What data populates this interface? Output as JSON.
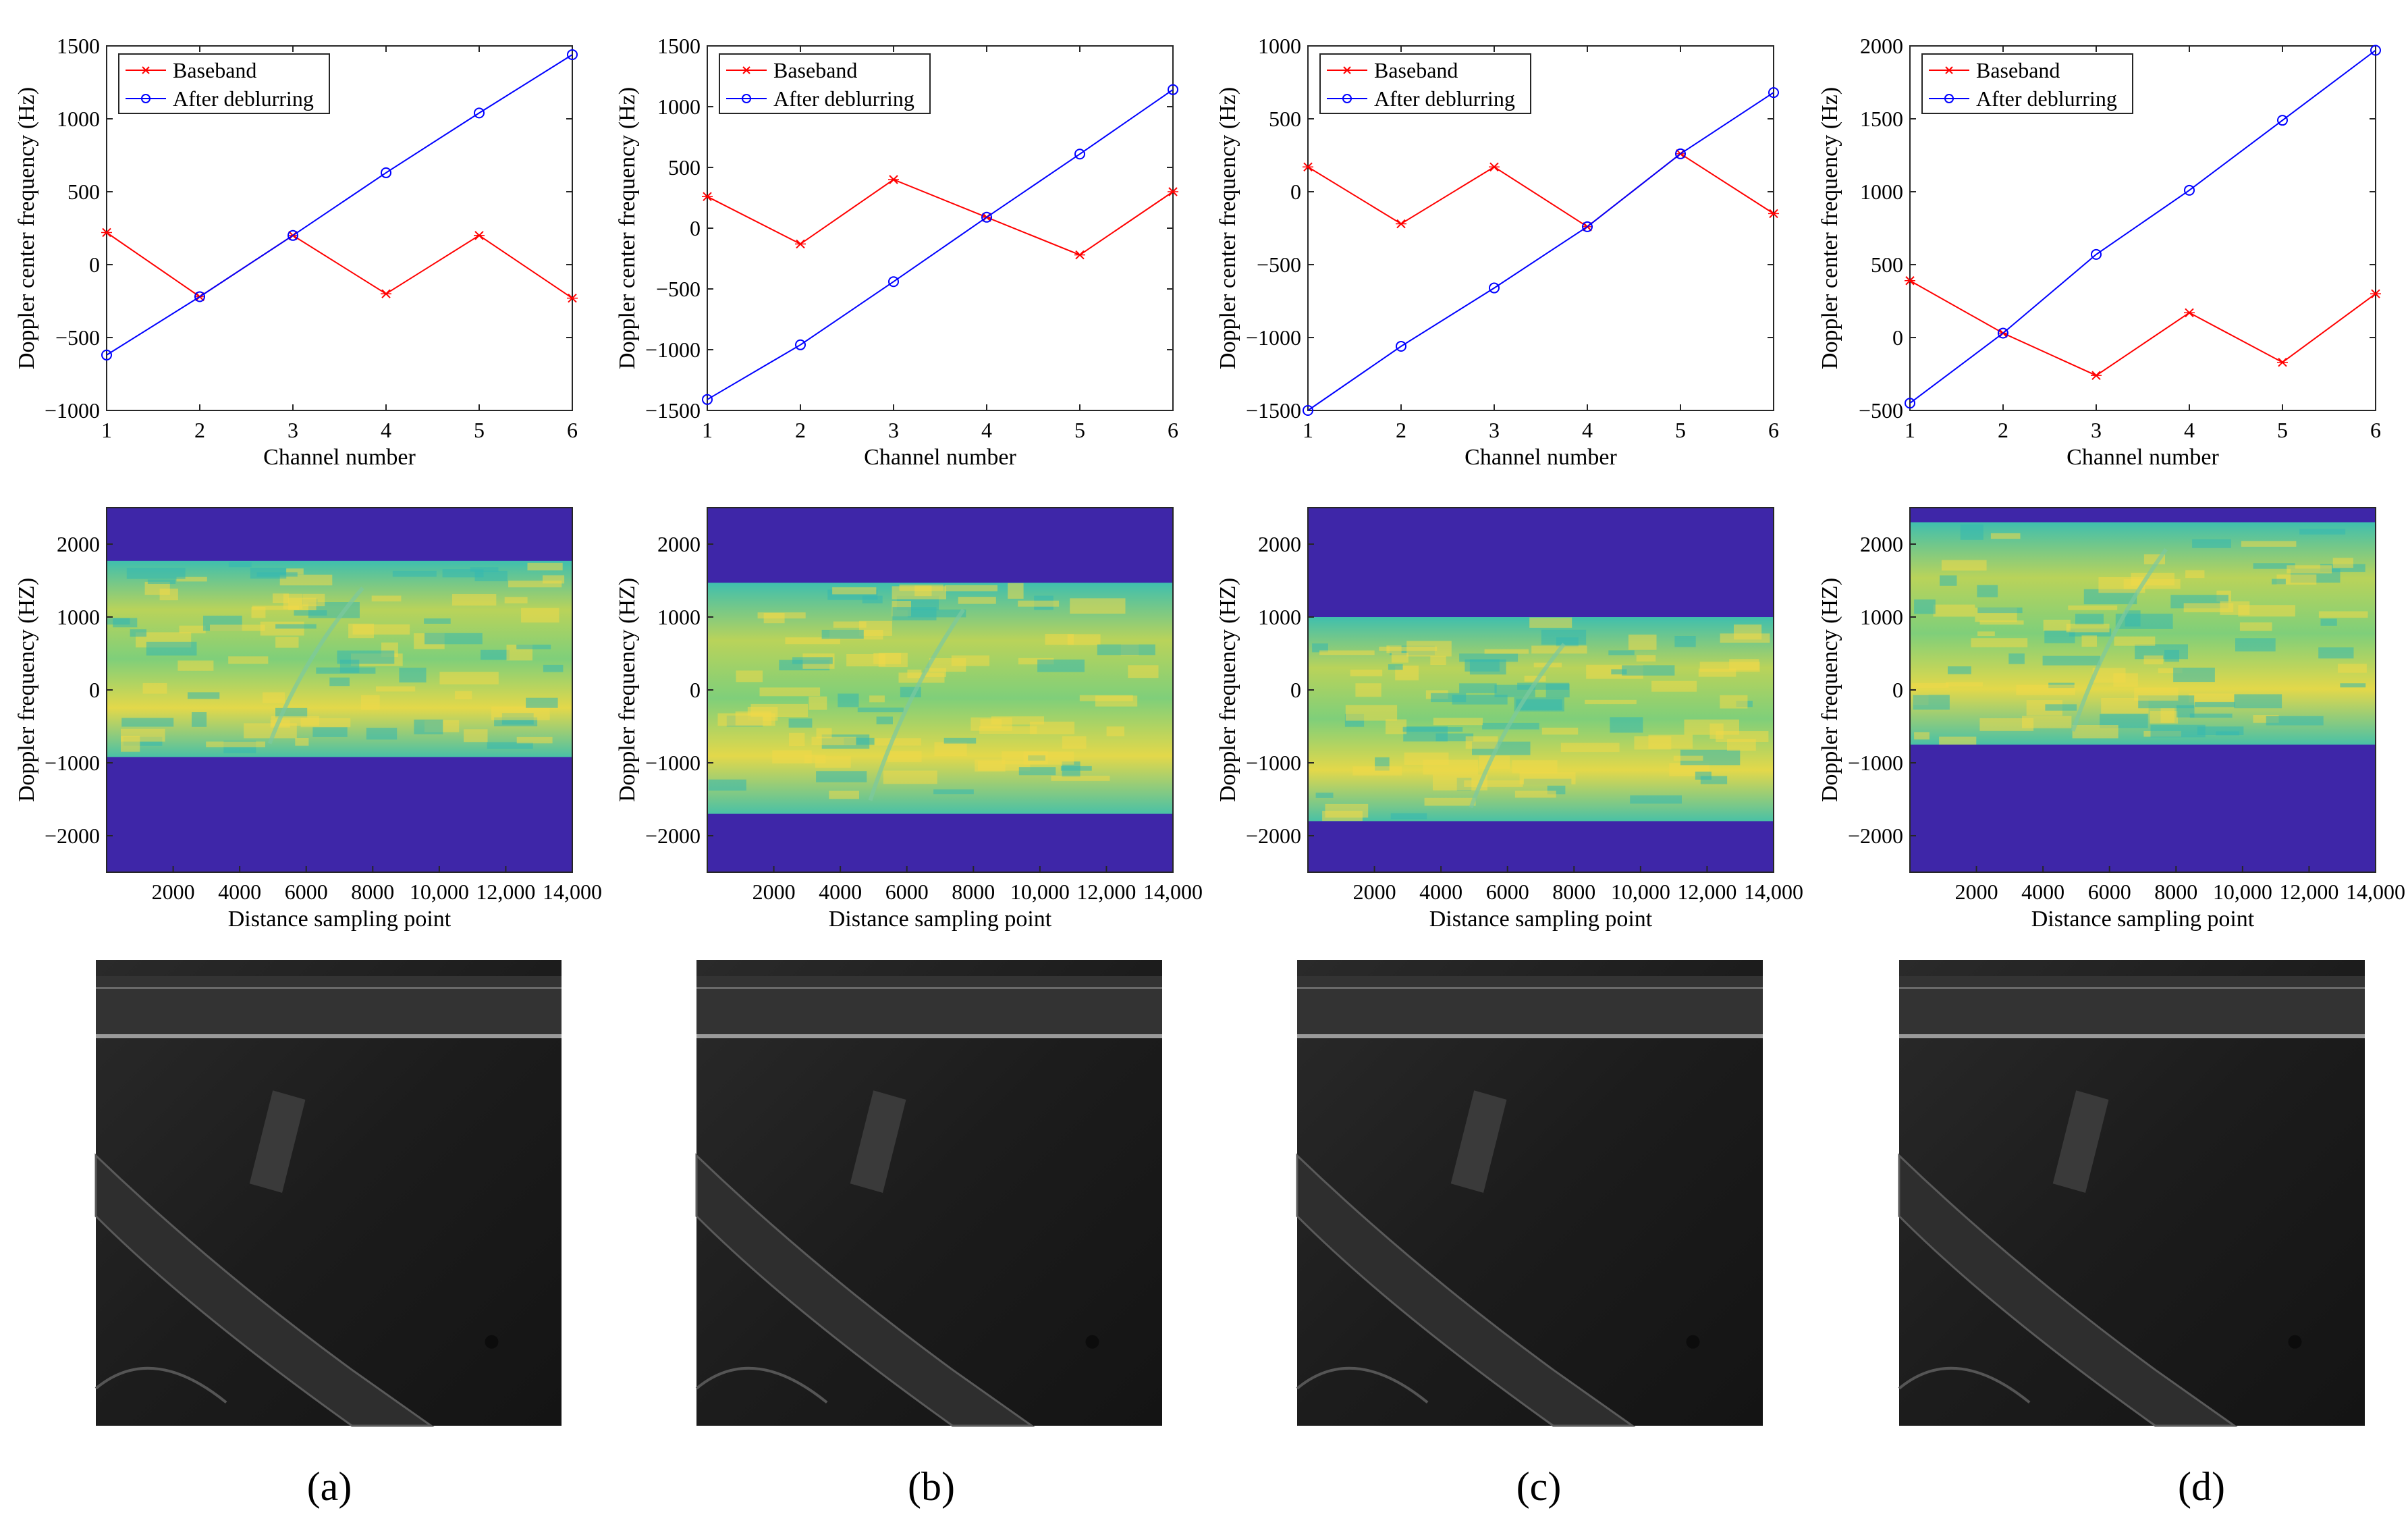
{
  "colors": {
    "baseband": "#ff0000",
    "deblurred": "#0000ff",
    "spectrum_bg": "#3e26a8",
    "spectrum_teal": "#35b8b0",
    "spectrum_yellow": "#f0d848",
    "sar_dark": "#1e1e1e"
  },
  "panel_labels": [
    "(a)",
    "(b)",
    "(c)",
    "(d)"
  ],
  "chart_data": [
    {
      "type": "line",
      "xlabel": "Channel number",
      "ylabel": "Doppler center frequency (Hz)",
      "x": [
        1,
        2,
        3,
        4,
        5,
        6
      ],
      "xticks": [
        "1",
        "2",
        "3",
        "4",
        "5",
        "6"
      ],
      "ylim": [
        -1000,
        1500
      ],
      "yticks": [
        -1000,
        -500,
        0,
        500,
        1000,
        1500
      ],
      "ytick_labels": [
        "−1000",
        "−500",
        "0",
        "500",
        "1000",
        "1500"
      ],
      "legend": "top-left",
      "series": [
        {
          "name": "Baseband",
          "marker": "x",
          "color": "#ff0000",
          "values": [
            220,
            -220,
            200,
            -200,
            200,
            -230
          ]
        },
        {
          "name": "After deblurring",
          "marker": "o",
          "color": "#0000ff",
          "values": [
            -620,
            -220,
            200,
            630,
            1040,
            1440
          ]
        }
      ]
    },
    {
      "type": "line",
      "xlabel": "Channel number",
      "ylabel": "Doppler center frequency (Hz)",
      "x": [
        1,
        2,
        3,
        4,
        5,
        6
      ],
      "xticks": [
        "1",
        "2",
        "3",
        "4",
        "5",
        "6"
      ],
      "ylim": [
        -1500,
        1500
      ],
      "yticks": [
        -1500,
        -1000,
        -500,
        0,
        500,
        1000,
        1500
      ],
      "ytick_labels": [
        "−1500",
        "−1000",
        "−500",
        "0",
        "500",
        "1000",
        "1500"
      ],
      "legend": "top-left",
      "series": [
        {
          "name": "Baseband",
          "marker": "x",
          "color": "#ff0000",
          "values": [
            260,
            -130,
            400,
            90,
            -220,
            300
          ]
        },
        {
          "name": "After deblurring",
          "marker": "o",
          "color": "#0000ff",
          "values": [
            -1410,
            -960,
            -440,
            90,
            610,
            1140
          ]
        }
      ]
    },
    {
      "type": "line",
      "xlabel": "Channel number",
      "ylabel": "Doppler center frequency (Hz)",
      "x": [
        1,
        2,
        3,
        4,
        5,
        6
      ],
      "xticks": [
        "1",
        "2",
        "3",
        "4",
        "5",
        "6"
      ],
      "ylim": [
        -1500,
        1000
      ],
      "yticks": [
        -1500,
        -1000,
        -500,
        0,
        500,
        1000
      ],
      "ytick_labels": [
        "−1500",
        "−1000",
        "−500",
        "0",
        "500",
        "1000"
      ],
      "legend": "top-left",
      "series": [
        {
          "name": "Baseband",
          "marker": "x",
          "color": "#ff0000",
          "values": [
            170,
            -220,
            170,
            -240,
            260,
            -150
          ]
        },
        {
          "name": "After deblurring",
          "marker": "o",
          "color": "#0000ff",
          "values": [
            -1500,
            -1060,
            -660,
            -240,
            260,
            680
          ]
        }
      ]
    },
    {
      "type": "line",
      "xlabel": "Channel number",
      "ylabel": "Doppler center frequency (Hz)",
      "x": [
        1,
        2,
        3,
        4,
        5,
        6
      ],
      "xticks": [
        "1",
        "2",
        "3",
        "4",
        "5",
        "6"
      ],
      "ylim": [
        -500,
        2000
      ],
      "yticks": [
        -500,
        0,
        500,
        1000,
        1500,
        2000
      ],
      "ytick_labels": [
        "−500",
        "0",
        "500",
        "1000",
        "1500",
        "2000"
      ],
      "legend": "top-left",
      "series": [
        {
          "name": "Baseband",
          "marker": "x",
          "color": "#ff0000",
          "values": [
            390,
            30,
            -260,
            170,
            -170,
            300
          ]
        },
        {
          "name": "After deblurring",
          "marker": "o",
          "color": "#0000ff",
          "values": [
            -450,
            30,
            570,
            1010,
            1490,
            1970
          ]
        }
      ]
    },
    {
      "type": "heatmap",
      "xlabel": "Distance sampling point",
      "ylabel": "Doppler frequency (HZ)",
      "xlim": [
        0,
        14000
      ],
      "xticks": [
        2000,
        4000,
        6000,
        8000,
        10000,
        12000,
        14000
      ],
      "xtick_labels": [
        "2000",
        "4000",
        "6000",
        "8000",
        "10,000",
        "12,000",
        "14,000"
      ],
      "ylim": [
        -2500,
        2500
      ],
      "yticks": [
        -2000,
        -1000,
        0,
        1000,
        2000
      ],
      "ytick_labels": [
        "−2000",
        "−1000",
        "0",
        "1000",
        "2000"
      ],
      "band_hz": [
        -920,
        1770
      ]
    },
    {
      "type": "heatmap",
      "xlabel": "Distance sampling point",
      "ylabel": "Doppler frequency (HZ)",
      "xlim": [
        0,
        14000
      ],
      "xticks": [
        2000,
        4000,
        6000,
        8000,
        10000,
        12000,
        14000
      ],
      "xtick_labels": [
        "2000",
        "4000",
        "6000",
        "8000",
        "10,000",
        "12,000",
        "14,000"
      ],
      "ylim": [
        -2500,
        2500
      ],
      "yticks": [
        -2000,
        -1000,
        0,
        1000,
        2000
      ],
      "ytick_labels": [
        "−2000",
        "−1000",
        "0",
        "1000",
        "2000"
      ],
      "band_hz": [
        -1700,
        1470
      ]
    },
    {
      "type": "heatmap",
      "xlabel": "Distance sampling point",
      "ylabel": "Doppler frequency (HZ)",
      "xlim": [
        0,
        14000
      ],
      "xticks": [
        2000,
        4000,
        6000,
        8000,
        10000,
        12000,
        14000
      ],
      "xtick_labels": [
        "2000",
        "4000",
        "6000",
        "8000",
        "10,000",
        "12,000",
        "14,000"
      ],
      "ylim": [
        -2500,
        2500
      ],
      "yticks": [
        -2000,
        -1000,
        0,
        1000,
        2000
      ],
      "ytick_labels": [
        "−2000",
        "−1000",
        "0",
        "1000",
        "2000"
      ],
      "band_hz": [
        -1800,
        1000
      ]
    },
    {
      "type": "heatmap",
      "xlabel": "Distance sampling point",
      "ylabel": "Doppler frequency (HZ)",
      "xlim": [
        0,
        14000
      ],
      "xticks": [
        2000,
        4000,
        6000,
        8000,
        10000,
        12000,
        14000
      ],
      "xtick_labels": [
        "2000",
        "4000",
        "6000",
        "8000",
        "10,000",
        "12,000",
        "14,000"
      ],
      "ylim": [
        -2500,
        2500
      ],
      "yticks": [
        -2000,
        -1000,
        0,
        1000,
        2000
      ],
      "ytick_labels": [
        "−2000",
        "−1000",
        "0",
        "1000",
        "2000"
      ],
      "band_hz": [
        -750,
        2300
      ]
    }
  ]
}
